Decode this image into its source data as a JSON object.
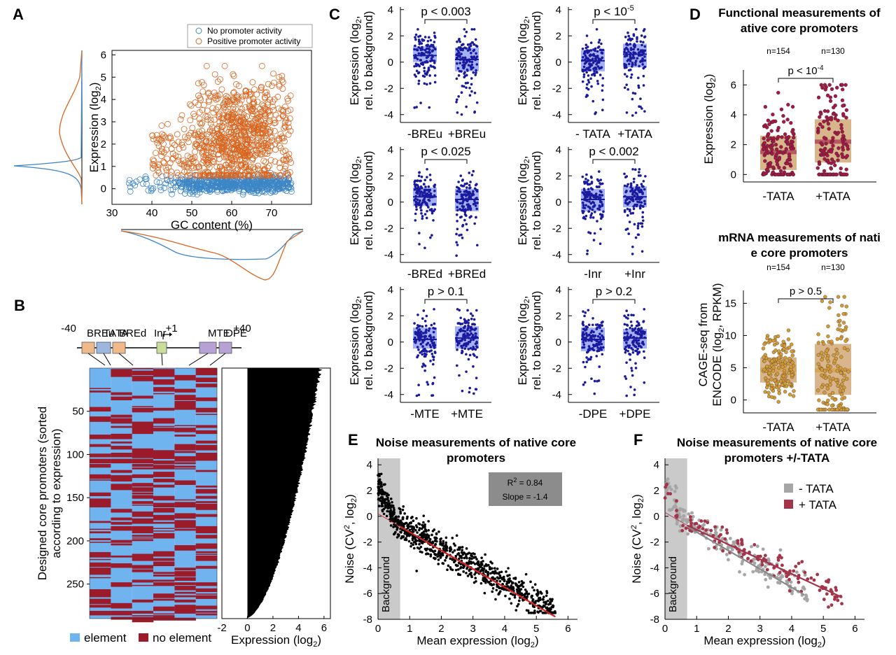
{
  "colors": {
    "blue": "#3d86c6",
    "orange": "#d9651f",
    "navy": "#1a1a9e",
    "boxblue": "#7a8ef0",
    "elem": "#6fb3ef",
    "noelem": "#9b1b2a",
    "tan": "#d9b58c",
    "maroon": "#a21a44",
    "gold": "#d39a38",
    "grey": "#b3b3b3",
    "red": "#d42222",
    "tataplus": "#a3344a"
  },
  "panels": {
    "A": "A",
    "B": "B",
    "C": "C",
    "D": "D",
    "E": "E",
    "F": "F"
  },
  "chart_data": [
    {
      "id": "A",
      "type": "scatter",
      "xlabel": "GC content (%)",
      "ylabel": "Expression (log2)",
      "xlim": [
        30,
        80
      ],
      "ylim": [
        -0.7,
        6.2
      ],
      "xticks": [
        "30",
        "40",
        "50",
        "60",
        "70"
      ],
      "yticks": [
        "0",
        "1",
        "2",
        "3",
        "4",
        "5",
        "6"
      ],
      "legend": [
        "No promoter activity",
        "Positive promoter activity"
      ],
      "legend_position": "top-right",
      "series": [
        {
          "name": "No promoter activity",
          "x_range": [
            33,
            75
          ],
          "y_range": [
            -0.3,
            0.7
          ]
        },
        {
          "name": "Positive promoter activity",
          "x_range": [
            33,
            75
          ],
          "y_range": [
            0.5,
            5.5
          ]
        }
      ]
    },
    {
      "id": "B",
      "type": "heatmap",
      "ylabel": "Designed core promoters (sorted according to expression)",
      "yticks": [
        "50",
        "100",
        "150",
        "200",
        "250"
      ],
      "columns": [
        "BREu",
        "TATA",
        "BREd",
        "Inr",
        "MTE",
        "DPE"
      ],
      "scheme_positions": [
        "-40",
        "+1",
        "+40"
      ],
      "legend": [
        "element",
        "no element"
      ],
      "bar_xlabel": "Expression (log2)",
      "bar_xticks": [
        "-2",
        "0",
        "2",
        "4",
        "6"
      ],
      "bar_xlim": [
        -2,
        6.5
      ],
      "n_rows": 290,
      "expression_range": [
        -0.2,
        5.9
      ]
    },
    {
      "id": "C",
      "type": "box",
      "ylabel": "Expression (log2, rel. to background)",
      "yticks": [
        "-4",
        "-2",
        "0",
        "2",
        "4"
      ],
      "ylim": [
        -4.6,
        4.2
      ],
      "subplots": [
        {
          "groups": [
            "-BREu",
            "+BREu"
          ],
          "pvalue": "p < 0.003",
          "medians": [
            0.5,
            0.2
          ],
          "q1": [
            0.0,
            -0.7
          ],
          "q3": [
            1.2,
            1.1
          ]
        },
        {
          "groups": [
            "- TATA",
            "+TATA"
          ],
          "pvalue": "p < 10-5",
          "medians": [
            0.1,
            0.6
          ],
          "q1": [
            -0.7,
            -0.4
          ],
          "q3": [
            0.9,
            1.4
          ]
        },
        {
          "groups": [
            "-BREd",
            "+BREd"
          ],
          "pvalue": "p < 0.025",
          "medians": [
            0.4,
            0.2
          ],
          "q1": [
            -0.3,
            -0.7
          ],
          "q3": [
            1.1,
            1.0
          ]
        },
        {
          "groups": [
            "-Inr",
            "+Inr"
          ],
          "pvalue": "p < 0.002",
          "medians": [
            0.2,
            0.4
          ],
          "q1": [
            -0.7,
            -0.4
          ],
          "q3": [
            1.0,
            1.2
          ]
        },
        {
          "groups": [
            "-MTE",
            "+MTE"
          ],
          "pvalue": "p > 0.1",
          "medians": [
            0.2,
            0.3
          ],
          "q1": [
            -0.5,
            -0.5
          ],
          "q3": [
            1.1,
            1.2
          ]
        },
        {
          "groups": [
            "-DPE",
            "+DPE"
          ],
          "pvalue": "p > 0.2",
          "medians": [
            0.2,
            0.3
          ],
          "q1": [
            -0.7,
            -0.5
          ],
          "q3": [
            1.1,
            1.0
          ]
        }
      ]
    },
    {
      "id": "D1",
      "type": "box",
      "title": "Functional measurements of native core promoters",
      "ylabel": "Expression (log2)",
      "groups": [
        "-TATA",
        "+TATA"
      ],
      "n": [
        "n=154",
        "n=130"
      ],
      "pvalue": "p < 10-4",
      "yticks": [
        "0",
        "2",
        "4",
        "6"
      ],
      "ylim": [
        -0.5,
        7
      ],
      "medians": [
        1.5,
        2.2
      ],
      "q1": [
        0.3,
        0.8
      ],
      "q3": [
        2.6,
        3.7
      ]
    },
    {
      "id": "D2",
      "type": "box",
      "title": "mRNA measurements of native core promoters",
      "ylabel": "CAGE-seq from ENCODE (log2, RPKM)",
      "groups": [
        "-TATA",
        "+TATA"
      ],
      "n": [
        "n=154",
        "n=130"
      ],
      "pvalue": "p > 0.5",
      "yticks": [
        "0",
        "5",
        "10",
        "15"
      ],
      "ylim": [
        -2,
        17
      ],
      "medians": [
        4.7,
        4.6
      ],
      "q1": [
        2.7,
        0.8
      ],
      "q3": [
        6.6,
        8.7
      ]
    },
    {
      "id": "E",
      "type": "scatter",
      "title": "Noise measurements of native core promoters",
      "xlabel": "Mean expression (log2)",
      "ylabel": "Noise (CV2, log2)",
      "xlim": [
        0,
        6.3
      ],
      "ylim": [
        -8,
        4.5
      ],
      "xticks": [
        "0",
        "1",
        "2",
        "3",
        "4",
        "5",
        "6"
      ],
      "yticks": [
        "-8",
        "-6",
        "-4",
        "-2",
        "0",
        "2",
        "4"
      ],
      "background_region": [
        0,
        0.7
      ],
      "background_label": "Background",
      "stats": {
        "r2": "R2 = 0.84",
        "slope": "Slope = -1.4"
      },
      "fit": {
        "x": [
          0.7,
          5.6
        ],
        "y": [
          -0.8,
          -7.8
        ]
      }
    },
    {
      "id": "F",
      "type": "scatter",
      "title": "Noise measurements of native core promoters +/-TATA",
      "xlabel": "Mean expression (log2)",
      "ylabel": "Noise (CV2, log2)",
      "xlim": [
        0,
        6.3
      ],
      "ylim": [
        -8,
        4.5
      ],
      "xticks": [
        "0",
        "1",
        "2",
        "3",
        "4",
        "5",
        "6"
      ],
      "yticks": [
        "-8",
        "-6",
        "-4",
        "-2",
        "0",
        "2",
        "4"
      ],
      "background_region": [
        0,
        0.7
      ],
      "background_label": "Background",
      "legend": [
        "- TATA",
        "+ TATA"
      ],
      "legend_position": "top-right",
      "fits": [
        {
          "name": "- TATA",
          "x": [
            0.7,
            4.4
          ],
          "y": [
            -0.8,
            -6.1
          ]
        },
        {
          "name": "+ TATA",
          "x": [
            0.7,
            5.6
          ],
          "y": [
            -0.7,
            -6.3
          ]
        }
      ]
    }
  ]
}
